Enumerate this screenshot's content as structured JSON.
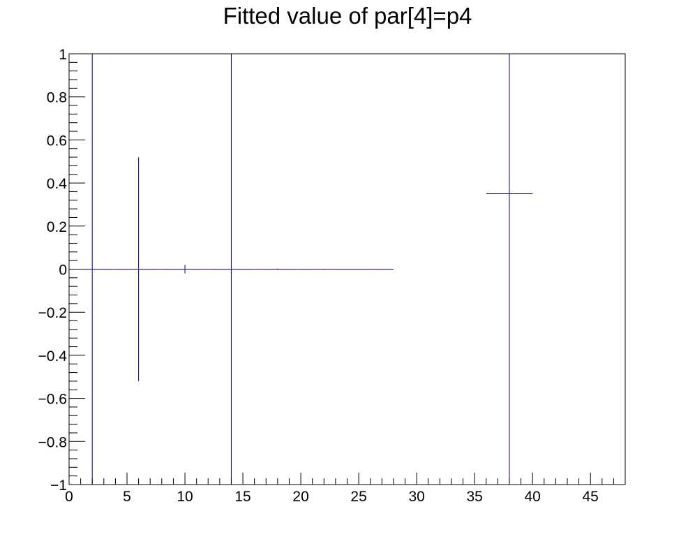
{
  "chart_data": {
    "type": "histogram",
    "title": "Fitted value of par[4]=p4",
    "xlabel": "",
    "ylabel": "",
    "xlim": [
      0,
      48
    ],
    "ylim": [
      -1,
      1
    ],
    "grid": false,
    "bin_width": 4,
    "bins": [
      {
        "x": 2,
        "y": 0,
        "yerr": 1
      },
      {
        "x": 6,
        "y": 0,
        "yerr": 0.52
      },
      {
        "x": 10,
        "y": 0,
        "yerr": 0.02
      },
      {
        "x": 14,
        "y": 0,
        "yerr": 1
      },
      {
        "x": 18,
        "y": 0,
        "yerr": 0.003
      },
      {
        "x": 22,
        "y": 0,
        "yerr": 0.002
      },
      {
        "x": 26,
        "y": 0,
        "yerr": 0.002
      },
      {
        "x": 38,
        "y": 0.35,
        "yerr": 1.35
      }
    ],
    "x_ticks": [
      "0",
      "5",
      "10",
      "15",
      "20",
      "25",
      "30",
      "35",
      "40",
      "45"
    ],
    "y_ticks": [
      "−1",
      "−0.8",
      "−0.6",
      "−0.4",
      "−0.2",
      "0",
      "0.2",
      "0.4",
      "0.6",
      "0.8",
      "1"
    ],
    "colors": {
      "marker": "#000080",
      "axis": "#000000"
    }
  }
}
